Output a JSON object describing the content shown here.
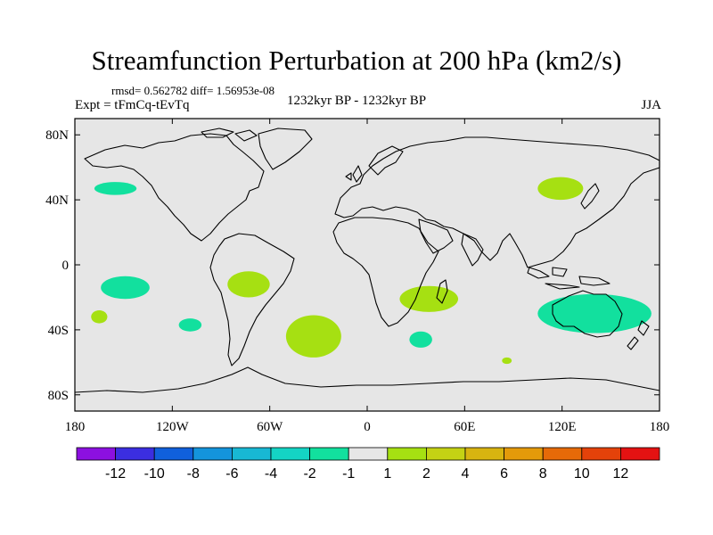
{
  "title": "Streamfunction Perturbation at 200 hPa (km2/s)",
  "stats": "rmsd= 0.562782 diff= 1.56953e-08",
  "experiment": "Expt = tFmCq-tEvTq",
  "period": "1232kyr BP - 1232kyr BP",
  "season": "JJA",
  "chart_data": {
    "type": "contour-map",
    "projection": "cylindrical-equidistant",
    "xlim": [
      -180,
      180
    ],
    "ylim": [
      -90,
      90
    ],
    "x_ticks": [
      {
        "value": -180,
        "label": "180"
      },
      {
        "value": -120,
        "label": "120W"
      },
      {
        "value": -60,
        "label": "60W"
      },
      {
        "value": 0,
        "label": "0"
      },
      {
        "value": 60,
        "label": "60E"
      },
      {
        "value": 120,
        "label": "120E"
      },
      {
        "value": 180,
        "label": "180"
      }
    ],
    "y_ticks": [
      {
        "value": 80,
        "label": "80N"
      },
      {
        "value": 40,
        "label": "40N"
      },
      {
        "value": 0,
        "label": "0"
      },
      {
        "value": -40,
        "label": "40S"
      },
      {
        "value": -80,
        "label": "80S"
      }
    ],
    "background_color": "#e6e6e6",
    "colorbar": {
      "colors": [
        "#8c10e0",
        "#3b2ee0",
        "#1060dc",
        "#1494dc",
        "#18b8d4",
        "#14d4c4",
        "#12e09e",
        "#e6e6e6",
        "#a6e012",
        "#c4d214",
        "#d8b410",
        "#e49a0a",
        "#e66a08",
        "#e4420a",
        "#e41212"
      ],
      "labels": [
        "-12",
        "-10",
        "-8",
        "-6",
        "-4",
        "-2",
        "-1",
        "1",
        "2",
        "4",
        "6",
        "8",
        "10",
        "12"
      ]
    },
    "regions": [
      {
        "name": "north-pacific",
        "level": "-2 to -1",
        "color": "#12e09e",
        "lon": -155,
        "lat": 47,
        "rlon": 13,
        "rlat": 4
      },
      {
        "name": "east-asia",
        "level": "1 to 2",
        "color": "#a6e012",
        "lon": 119,
        "lat": 47,
        "rlon": 14,
        "rlat": 7
      },
      {
        "name": "south-pacific-1",
        "level": "-2 to -1",
        "color": "#12e09e",
        "lon": -149,
        "lat": -14,
        "rlon": 15,
        "rlat": 7
      },
      {
        "name": "south-america",
        "level": "1 to 2",
        "color": "#a6e012",
        "lon": -73,
        "lat": -12,
        "rlon": 13,
        "rlat": 8
      },
      {
        "name": "southern-africa",
        "level": "1 to 2",
        "color": "#a6e012",
        "lon": 38,
        "lat": -21,
        "rlon": 18,
        "rlat": 8
      },
      {
        "name": "south-pacific-2",
        "level": "1 to 2",
        "color": "#a6e012",
        "lon": -165,
        "lat": -32,
        "rlon": 5,
        "rlat": 4
      },
      {
        "name": "south-pacific-3",
        "level": "-2 to -1",
        "color": "#12e09e",
        "lon": -109,
        "lat": -37,
        "rlon": 7,
        "rlat": 4
      },
      {
        "name": "south-atlantic",
        "level": "1 to 2",
        "color": "#a6e012",
        "lon": -33,
        "lat": -44,
        "rlon": 17,
        "rlat": 13
      },
      {
        "name": "south-indian",
        "level": "-2 to -1",
        "color": "#12e09e",
        "lon": 33,
        "lat": -46,
        "rlon": 7,
        "rlat": 5
      },
      {
        "name": "australia",
        "level": "-2 to -1",
        "color": "#12e09e",
        "lon": 140,
        "lat": -30,
        "rlon": 35,
        "rlat": 12
      },
      {
        "name": "southern-ocean",
        "level": "1 to 2",
        "color": "#a6e012",
        "lon": 86,
        "lat": -59,
        "rlon": 3,
        "rlat": 2
      }
    ]
  }
}
